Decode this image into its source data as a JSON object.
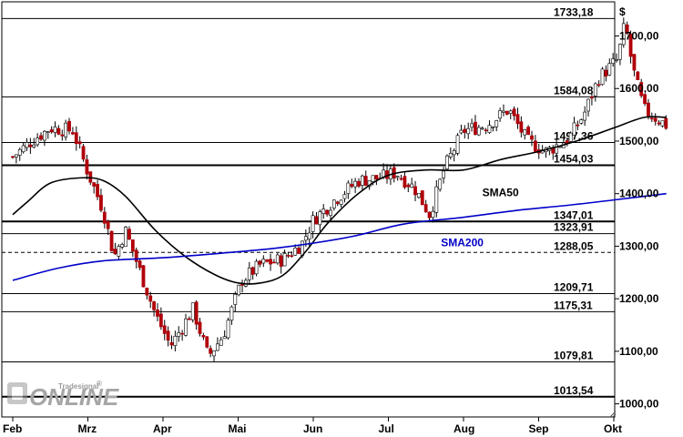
{
  "chart_data": {
    "type": "candlestick",
    "unit": "$",
    "ylim": [
      975,
      1765
    ],
    "x_months": [
      "Feb",
      "Mrz",
      "Apr",
      "Mai",
      "Jun",
      "Jul",
      "Aug",
      "Sep",
      "Okt"
    ],
    "y_ticks": [
      "1000,00",
      "1100,00",
      "1200,00",
      "1300,00",
      "1400,00",
      "1500,00",
      "1600,00",
      "1700,00"
    ],
    "y_tick_values": [
      1000,
      1100,
      1200,
      1300,
      1400,
      1500,
      1600,
      1700
    ],
    "levels": [
      {
        "label": "1733,18",
        "value": 1733.18,
        "style": "solid"
      },
      {
        "label": "1584,08",
        "value": 1584.08,
        "style": "solid"
      },
      {
        "label": "1497,36",
        "value": 1497.36,
        "style": "solid"
      },
      {
        "label": "1454,03",
        "value": 1454.03,
        "style": "bold"
      },
      {
        "label": "1347,01",
        "value": 1347.01,
        "style": "bold"
      },
      {
        "label": "1323,91",
        "value": 1323.91,
        "style": "solid"
      },
      {
        "label": "1288,05",
        "value": 1288.05,
        "style": "dashed"
      },
      {
        "label": "1209,71",
        "value": 1209.71,
        "style": "solid"
      },
      {
        "label": "1175,31",
        "value": 1175.31,
        "style": "solid"
      },
      {
        "label": "1079,81",
        "value": 1079.81,
        "style": "solid"
      },
      {
        "label": "1013,54",
        "value": 1013.54,
        "style": "bold"
      }
    ],
    "close_path": [
      [
        0,
        1470
      ],
      [
        0.25,
        1500
      ],
      [
        0.5,
        1525
      ],
      [
        0.8,
        1520
      ],
      [
        1.0,
        1440
      ],
      [
        1.2,
        1370
      ],
      [
        1.35,
        1280
      ],
      [
        1.5,
        1330
      ],
      [
        1.7,
        1250
      ],
      [
        1.9,
        1170
      ],
      [
        2.1,
        1110
      ],
      [
        2.4,
        1180
      ],
      [
        2.6,
        1090
      ],
      [
        2.8,
        1130
      ],
      [
        3.05,
        1235
      ],
      [
        3.3,
        1265
      ],
      [
        3.6,
        1275
      ],
      [
        3.85,
        1305
      ],
      [
        4.0,
        1350
      ],
      [
        4.3,
        1390
      ],
      [
        4.6,
        1425
      ],
      [
        4.9,
        1430
      ],
      [
        5.1,
        1440
      ],
      [
        5.35,
        1410
      ],
      [
        5.55,
        1360
      ],
      [
        5.75,
        1450
      ],
      [
        6.0,
        1520
      ],
      [
        6.3,
        1530
      ],
      [
        6.6,
        1560
      ],
      [
        6.85,
        1500
      ],
      [
        7.1,
        1480
      ],
      [
        7.4,
        1505
      ],
      [
        7.6,
        1550
      ],
      [
        7.8,
        1620
      ],
      [
        8.05,
        1655
      ],
      [
        8.15,
        1725
      ],
      [
        8.25,
        1640
      ],
      [
        8.4,
        1560
      ],
      [
        8.55,
        1545
      ],
      [
        8.7,
        1530
      ]
    ],
    "series": [
      {
        "name": "SMA50",
        "color": "#000000",
        "points": [
          [
            0,
            1360
          ],
          [
            0.2,
            1385
          ],
          [
            0.5,
            1420
          ],
          [
            0.9,
            1430
          ],
          [
            1.2,
            1425
          ],
          [
            1.5,
            1395
          ],
          [
            1.9,
            1330
          ],
          [
            2.3,
            1280
          ],
          [
            2.7,
            1245
          ],
          [
            3.0,
            1230
          ],
          [
            3.3,
            1230
          ],
          [
            3.6,
            1245
          ],
          [
            3.9,
            1290
          ],
          [
            4.2,
            1345
          ],
          [
            4.6,
            1400
          ],
          [
            5.0,
            1435
          ],
          [
            5.5,
            1445
          ],
          [
            6.0,
            1445
          ],
          [
            6.5,
            1465
          ],
          [
            7.0,
            1480
          ],
          [
            7.5,
            1500
          ],
          [
            8.0,
            1525
          ],
          [
            8.4,
            1545
          ],
          [
            8.7,
            1545
          ]
        ]
      },
      {
        "name": "SMA200",
        "color": "#0000c8",
        "points": [
          [
            0,
            1235
          ],
          [
            0.6,
            1258
          ],
          [
            1.2,
            1272
          ],
          [
            2.0,
            1278
          ],
          [
            2.8,
            1287
          ],
          [
            3.6,
            1298
          ],
          [
            4.5,
            1318
          ],
          [
            5.2,
            1342
          ],
          [
            6.0,
            1355
          ],
          [
            6.7,
            1368
          ],
          [
            7.4,
            1378
          ],
          [
            8.0,
            1388
          ],
          [
            8.7,
            1400
          ]
        ]
      }
    ],
    "annotations": [
      {
        "text": "SMA50",
        "x": 6.25,
        "y": 1395,
        "color": "#000000"
      },
      {
        "text": "SMA200",
        "x": 5.7,
        "y": 1300,
        "color": "#0000c8"
      }
    ],
    "grid": false,
    "candle_colors": {
      "up": "#ffffff",
      "down": "#b0000a",
      "wick": "#000000"
    }
  },
  "watermark": {
    "brand": "Tradesignal",
    "reg": "®",
    "product": "ONLINE"
  }
}
